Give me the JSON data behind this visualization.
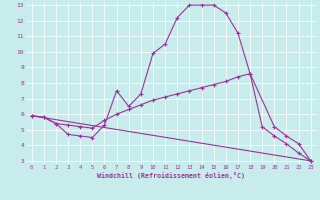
{
  "xlabel": "Windchill (Refroidissement éolien,°C)",
  "bg_color": "#c8ecec",
  "grid_color": "#ffffff",
  "line_color": "#993399",
  "xlim": [
    -0.5,
    23.5
  ],
  "ylim": [
    2.8,
    13.2
  ],
  "xticks": [
    0,
    1,
    2,
    3,
    4,
    5,
    6,
    7,
    8,
    9,
    10,
    11,
    12,
    13,
    14,
    15,
    16,
    17,
    18,
    19,
    20,
    21,
    22,
    23
  ],
  "yticks": [
    3,
    4,
    5,
    6,
    7,
    8,
    9,
    10,
    11,
    12,
    13
  ],
  "line1_x": [
    0,
    1,
    2,
    3,
    4,
    5,
    6,
    7,
    8,
    9,
    10,
    11,
    12,
    13,
    14,
    15,
    16,
    17,
    18,
    19,
    20,
    21,
    22,
    23
  ],
  "line1_y": [
    5.9,
    5.8,
    5.4,
    4.7,
    4.6,
    4.5,
    5.3,
    7.5,
    6.5,
    7.3,
    9.9,
    10.5,
    12.2,
    13.0,
    13.0,
    13.0,
    12.5,
    11.2,
    8.6,
    5.2,
    4.6,
    4.1,
    3.5,
    3.0
  ],
  "line2_x": [
    0,
    1,
    2,
    3,
    4,
    5,
    6,
    7,
    8,
    9,
    10,
    11,
    12,
    13,
    14,
    15,
    16,
    17,
    18,
    20,
    21,
    22,
    23
  ],
  "line2_y": [
    5.9,
    5.8,
    5.4,
    5.3,
    5.2,
    5.1,
    5.6,
    6.0,
    6.3,
    6.6,
    6.9,
    7.1,
    7.3,
    7.5,
    7.7,
    7.9,
    8.1,
    8.4,
    8.6,
    5.2,
    4.6,
    4.1,
    3.0
  ],
  "line3_x": [
    0,
    23
  ],
  "line3_y": [
    5.9,
    3.0
  ]
}
